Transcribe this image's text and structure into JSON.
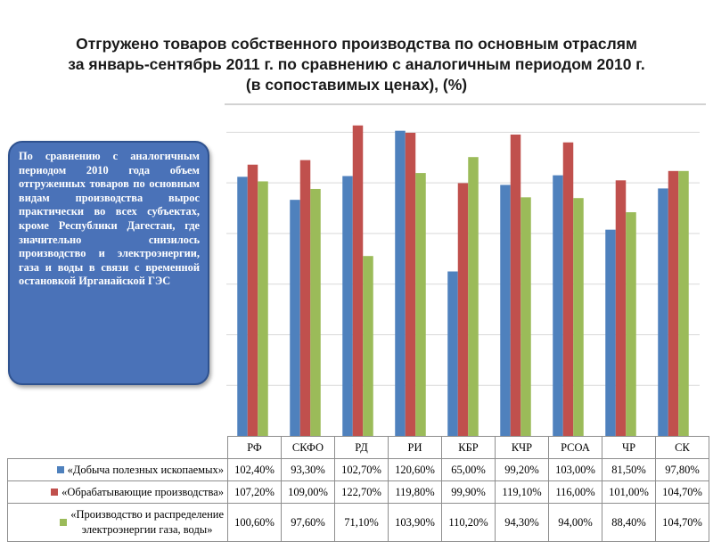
{
  "title": {
    "line1": "Отгружено товаров собственного производства по основным отраслям",
    "line2": "за январь-сентябрь  2011 г.  по сравнению с аналогичным периодом 2010 г.",
    "line3": "(в сопоставимых ценах), (%)"
  },
  "callout": {
    "text": "По сравнению с аналогичным периодом 2010 года объем отгруженных товаров по основным видам производства вырос практически во всех субъектах, кроме Республики Дагестан, где значительно снизилось производство и электроэнергии, газа и воды в связи с временной остановкой Ирганайской ГЭС"
  },
  "colors": {
    "blue": "#4f81bd",
    "red": "#c0504d",
    "green": "#9bbb59"
  },
  "chart_data": {
    "type": "bar",
    "categories": [
      "РФ",
      "СКФО",
      "РД",
      "РИ",
      "КБР",
      "КЧР",
      "РСОА",
      "ЧР",
      "СК"
    ],
    "ylim": [
      0,
      130
    ],
    "grid": true,
    "legend": "table-left",
    "series": [
      {
        "name": "«Добыча полезных ископаемых»",
        "values": [
          102.4,
          93.3,
          102.7,
          120.6,
          65.0,
          99.2,
          103.0,
          81.5,
          97.8
        ],
        "labels": [
          "102,40%",
          "93,30%",
          "102,70%",
          "120,60%",
          "65,00%",
          "99,20%",
          "103,00%",
          "81,50%",
          "97,80%"
        ],
        "color": "#4f81bd"
      },
      {
        "name": "«Обрабатывающие производства»",
        "values": [
          107.2,
          109.0,
          122.7,
          119.8,
          99.9,
          119.1,
          116.0,
          101.0,
          104.7
        ],
        "labels": [
          "107,20%",
          "109,00%",
          "122,70%",
          "119,80%",
          "99,90%",
          "119,10%",
          "116,00%",
          "101,00%",
          "104,70%"
        ],
        "color": "#c0504d"
      },
      {
        "name": "«Производство и распределение электроэнергии газа, воды»",
        "name_line1": "«Производство и распределение",
        "name_line2": "электроэнергии газа, воды»",
        "values": [
          100.6,
          97.6,
          71.1,
          103.9,
          110.2,
          94.3,
          94.0,
          88.4,
          104.7
        ],
        "labels": [
          "100,60%",
          "97,60%",
          "71,10%",
          "103,90%",
          "110,20%",
          "94,30%",
          "94,00%",
          "88,40%",
          "104,70%"
        ],
        "color": "#9bbb59"
      }
    ]
  }
}
